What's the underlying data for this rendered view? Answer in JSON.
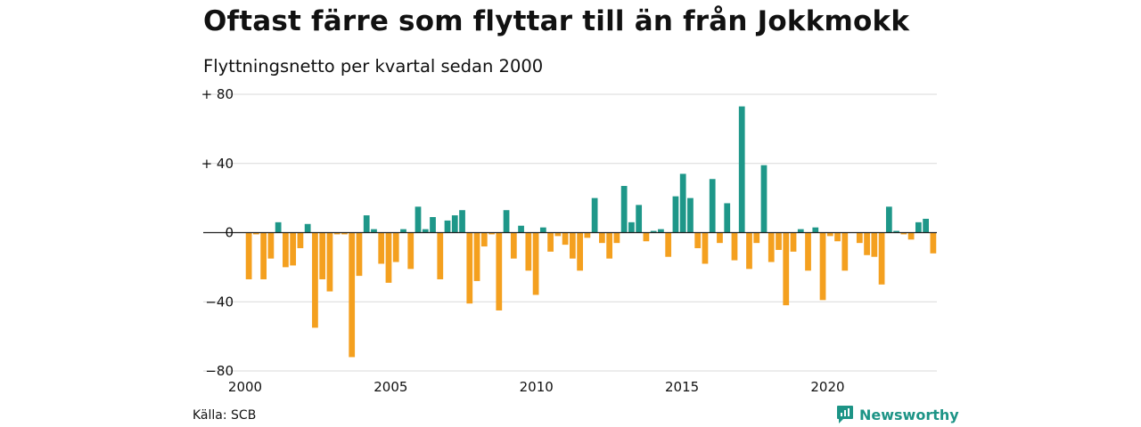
{
  "title": "Oftast färre som flyttar till än från Jokkmokk",
  "subtitle": "Flyttningsnetto per kvartal sedan 2000",
  "source": "Källa: SCB",
  "brand": "Newsworthy",
  "colors": {
    "positive": "#1e9789",
    "negative": "#f4a01f",
    "brand": "#1d9486",
    "grid": "#d9d9d9"
  },
  "chart_data": {
    "type": "bar",
    "quarter_start": "2000-Q1",
    "xlim": [
      2000,
      2023.75
    ],
    "ylim": [
      -80,
      80
    ],
    "x_ticks": [
      "2000",
      "2005",
      "2010",
      "2015",
      "2020"
    ],
    "y_ticks": [
      "+ 80",
      "+ 40",
      "0",
      "−40",
      "−80"
    ],
    "y_tick_values": [
      80,
      40,
      0,
      -40,
      -80
    ],
    "grid": true,
    "values": [
      -27,
      -1,
      -27,
      -15,
      6,
      -20,
      -19,
      -9,
      5,
      -55,
      -27,
      -34,
      -1,
      -1,
      -72,
      -25,
      10,
      2,
      -18,
      -29,
      -17,
      2,
      -21,
      15,
      2,
      9,
      -27,
      7,
      10,
      13,
      -41,
      -28,
      -8,
      -1,
      -45,
      13,
      -15,
      4,
      -22,
      -36,
      3,
      -11,
      -2,
      -7,
      -15,
      -22,
      -3,
      20,
      -6,
      -15,
      -6,
      27,
      6,
      16,
      -5,
      1,
      2,
      -14,
      21,
      34,
      20,
      -9,
      -18,
      31,
      -6,
      17,
      -16,
      73,
      -21,
      -6,
      39,
      -17,
      -10,
      -42,
      -11,
      2,
      -22,
      3,
      -39,
      -2,
      -5,
      -22,
      0,
      -6,
      -13,
      -14,
      -30,
      15,
      1,
      -1,
      -4,
      6,
      8,
      -12
    ]
  }
}
